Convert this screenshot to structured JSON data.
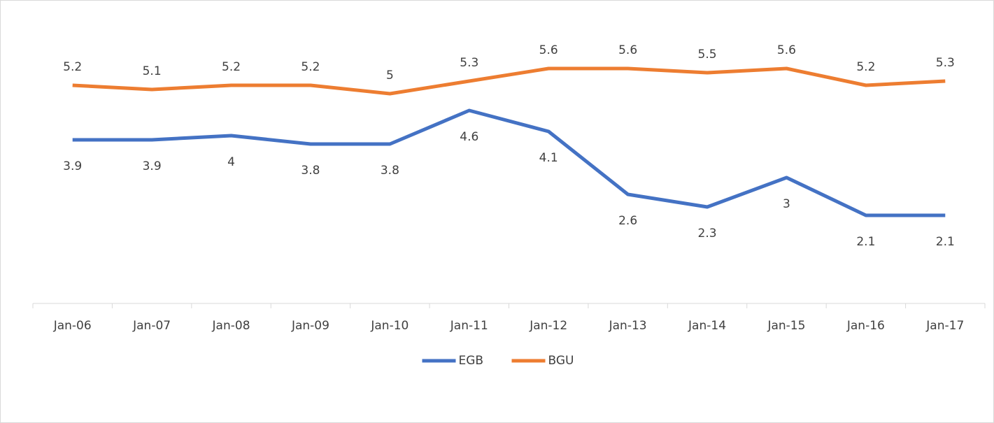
{
  "chart_data": {
    "type": "line",
    "categories": [
      "Jan-06",
      "Jan-07",
      "Jan-08",
      "Jan-09",
      "Jan-10",
      "Jan-11",
      "Jan-12",
      "Jan-13",
      "Jan-14",
      "Jan-15",
      "Jan-16",
      "Jan-17"
    ],
    "series": [
      {
        "name": "EGB",
        "color": "#4472c4",
        "values": [
          3.9,
          3.9,
          4,
          3.8,
          3.8,
          4.6,
          4.1,
          2.6,
          2.3,
          3,
          2.1,
          2.1
        ],
        "label_position": "below"
      },
      {
        "name": "BGU",
        "color": "#ed7d31",
        "values": [
          5.2,
          5.1,
          5.2,
          5.2,
          5,
          5.3,
          5.6,
          5.6,
          5.5,
          5.6,
          5.2,
          5.3
        ],
        "label_position": "above"
      }
    ],
    "legend": "bottom"
  }
}
